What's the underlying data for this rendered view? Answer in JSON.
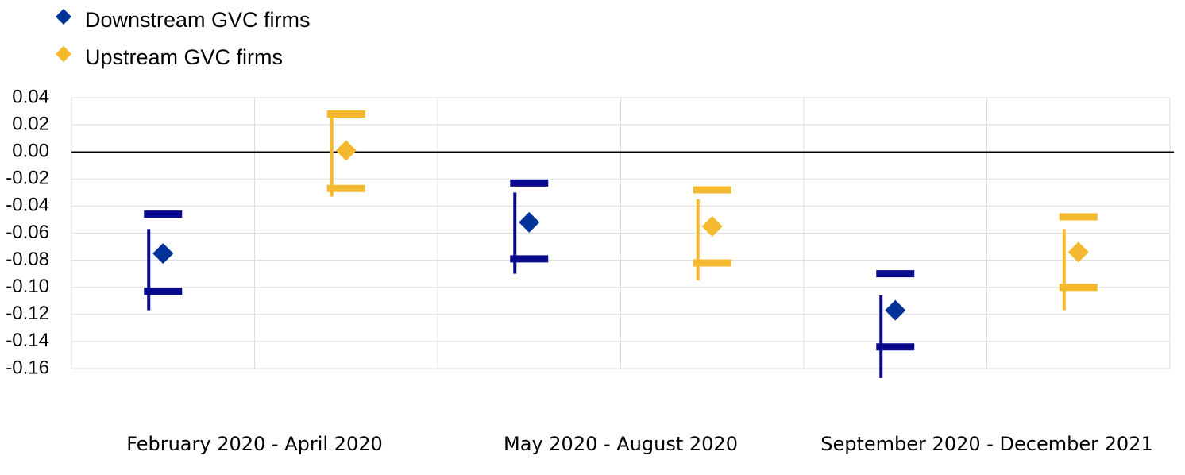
{
  "chart_data": {
    "type": "interval",
    "categories": [
      "February 2020 - April 2020",
      "May 2020 - August 2020",
      "September 2020 - December 2021"
    ],
    "series": [
      {
        "name": "Downstream GVC firms",
        "color": "#003399",
        "bar_color": "#0a0a8c",
        "values": [
          -0.075,
          -0.052,
          -0.117
        ],
        "upper": [
          -0.046,
          -0.023,
          -0.09
        ],
        "lower": [
          -0.103,
          -0.079,
          -0.144
        ],
        "line_high": [
          -0.057,
          -0.03,
          -0.106
        ],
        "line_low": [
          -0.117,
          -0.09,
          -0.167
        ]
      },
      {
        "name": "Upstream GVC firms",
        "color": "#f5b930",
        "bar_color": "#f5b930",
        "values": [
          0.001,
          -0.055,
          -0.074
        ],
        "upper": [
          0.028,
          -0.028,
          -0.048
        ],
        "lower": [
          -0.027,
          -0.082,
          -0.1
        ],
        "line_high": [
          0.027,
          -0.035,
          -0.057
        ],
        "line_low": [
          -0.033,
          -0.095,
          -0.117
        ]
      }
    ],
    "ylim": [
      -0.16,
      0.04
    ],
    "yticks": [
      0.04,
      0.02,
      {
        "value": 0,
        "label": "0.00"
      },
      -0.02,
      -0.04,
      -0.06,
      -0.08,
      {
        "value": -0.1,
        "label": "-0.10"
      },
      -0.12,
      -0.14,
      -0.16
    ],
    "grid": true
  }
}
